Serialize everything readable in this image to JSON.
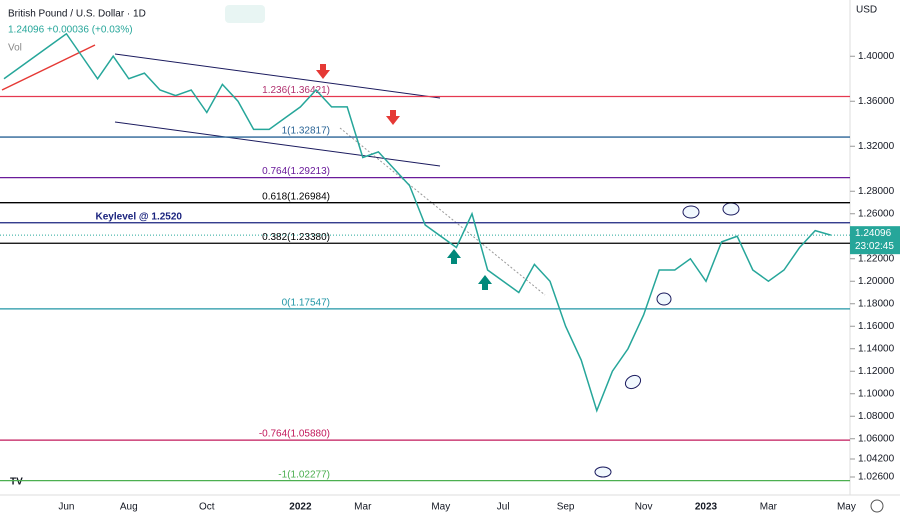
{
  "chart_data": {
    "type": "line",
    "title": "British Pound / U.S. Dollar · 1D",
    "subtitle": "1.24096 +0.00036 (+0.03%)",
    "volume_label": "Vol",
    "currency": "USD",
    "last_price": {
      "value": 1.24096,
      "label": "1.24096"
    },
    "countdown": "23:02:45",
    "categories": [
      null,
      null,
      null,
      null,
      "Jun",
      null,
      null,
      null,
      "Aug",
      null,
      null,
      null,
      null,
      "Oct",
      null,
      null,
      null,
      null,
      null,
      "2022",
      null,
      null,
      null,
      "Mar",
      null,
      null,
      null,
      null,
      "May",
      null,
      null,
      null,
      "Jul",
      null,
      null,
      null,
      "Sep",
      null,
      null,
      null,
      null,
      "Nov",
      null,
      null,
      null,
      "2023",
      null,
      null,
      null,
      "Mar",
      null,
      null,
      null,
      null,
      "May"
    ],
    "series": [
      {
        "name": "GBPUSD",
        "color": "#26a69a",
        "values": [
          1.38,
          1.39,
          1.4,
          1.41,
          1.42,
          1.4,
          1.38,
          1.4,
          1.38,
          1.385,
          1.37,
          1.365,
          1.37,
          1.35,
          1.375,
          1.36,
          1.335,
          1.335,
          1.345,
          1.355,
          1.37,
          1.355,
          1.355,
          1.31,
          1.315,
          1.3,
          1.285,
          1.25,
          1.24,
          1.23,
          1.26,
          1.21,
          1.2,
          1.19,
          1.215,
          1.2,
          1.16,
          1.13,
          1.085,
          1.12,
          1.14,
          1.17,
          1.21,
          1.21,
          1.22,
          1.2,
          1.235,
          1.24,
          1.21,
          1.2,
          1.21,
          1.23,
          1.245,
          1.241,
          null
        ]
      }
    ],
    "ylim": [
      1.01,
      1.45
    ],
    "yticks": [
      {
        "value": 1.026,
        "label": "1.02600"
      },
      {
        "value": 1.042,
        "label": "1.04200"
      },
      {
        "value": 1.06,
        "label": "1.06000"
      },
      {
        "value": 1.08,
        "label": "1.08000"
      },
      {
        "value": 1.1,
        "label": "1.10000"
      },
      {
        "value": 1.12,
        "label": "1.12000"
      },
      {
        "value": 1.14,
        "label": "1.14000"
      },
      {
        "value": 1.16,
        "label": "1.16000"
      },
      {
        "value": 1.18,
        "label": "1.18000"
      },
      {
        "value": 1.2,
        "label": "1.20000"
      },
      {
        "value": 1.22,
        "label": "1.22000"
      },
      {
        "value": 1.26,
        "label": "1.26000"
      },
      {
        "value": 1.28,
        "label": "1.28000"
      },
      {
        "value": 1.32,
        "label": "1.32000"
      },
      {
        "value": 1.36,
        "label": "1.36000"
      },
      {
        "value": 1.4,
        "label": "1.40000"
      }
    ],
    "levels": [
      {
        "label": "1.236(1.36421)",
        "value": 1.36421,
        "color": "#e53950",
        "text_color": "#b0306e"
      },
      {
        "label": "1(1.32817)",
        "value": 1.32817,
        "color": "#2a6496",
        "text_color": "#2a6496"
      },
      {
        "label": "0.764(1.29213)",
        "value": 1.29213,
        "color": "#6a1b9a",
        "text_color": "#6a1b9a"
      },
      {
        "label": "0.618(1.26984)",
        "value": 1.26984,
        "color": "#000000",
        "text_color": "#000000"
      },
      {
        "label": "Keylevel @ 1.2520",
        "value": 1.252,
        "color": "#1a237e",
        "text_color": "#1a237e"
      },
      {
        "label": "0.382(1.23380)",
        "value": 1.2338,
        "color": "#000000",
        "text_color": "#000000"
      },
      {
        "label": "0(1.17547)",
        "value": 1.17547,
        "color": "#2196a6",
        "text_color": "#2196a6"
      },
      {
        "label": "-0.764(1.05880)",
        "value": 1.0588,
        "color": "#c2185b",
        "text_color": "#c2185b"
      },
      {
        "label": "-1(1.02277)",
        "value": 1.02277,
        "color": "#4caf50",
        "text_color": "#4caf50"
      }
    ]
  }
}
